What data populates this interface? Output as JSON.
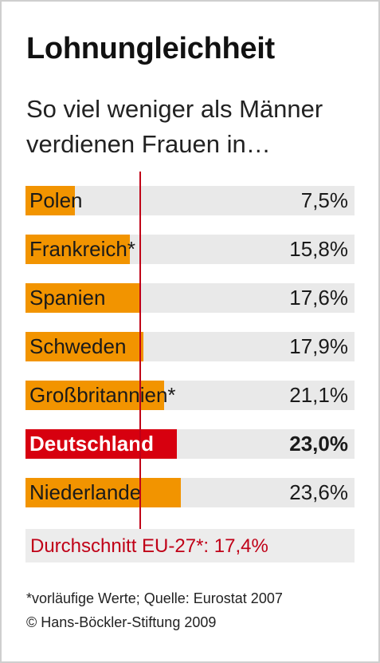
{
  "title": "Lohnungleichheit",
  "subtitle": "So viel weniger als Männer verdienen Frauen in…",
  "chart_data": {
    "type": "bar",
    "orientation": "horizontal",
    "categories": [
      "Polen",
      "Frankreich*",
      "Spanien",
      "Schweden",
      "Großbritannien*",
      "Deutschland",
      "Niederlande"
    ],
    "values": [
      7.5,
      15.8,
      17.6,
      17.9,
      21.1,
      23.0,
      23.6
    ],
    "value_labels": [
      "7,5%",
      "15,8%",
      "17,6%",
      "17,9%",
      "21,1%",
      "23,0%",
      "23,6%"
    ],
    "highlight_index": 5,
    "xlim": [
      0,
      50
    ],
    "reference_line": {
      "value": 17.4,
      "label": "Durchschnitt EU-27*: 17,4%"
    },
    "colors": {
      "bar": "#f29400",
      "highlight": "#d7000f",
      "track": "#e9e9e9",
      "reference": "#c00017"
    }
  },
  "footnote": {
    "line1": "*vorläufige Werte; Quelle: Eurostat 2007",
    "line2": "© Hans-Böckler-Stiftung 2009"
  }
}
